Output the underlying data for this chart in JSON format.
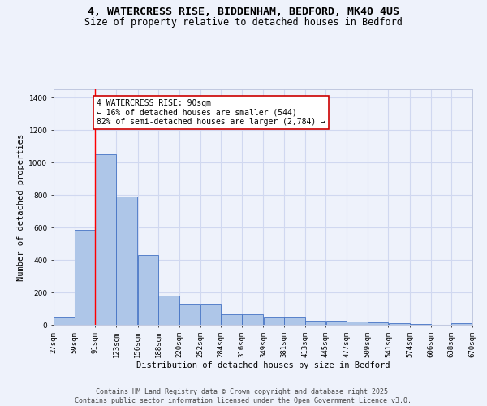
{
  "title_line1": "4, WATERCRESS RISE, BIDDENHAM, BEDFORD, MK40 4US",
  "title_line2": "Size of property relative to detached houses in Bedford",
  "xlabel": "Distribution of detached houses by size in Bedford",
  "ylabel": "Number of detached properties",
  "bar_left_edges": [
    27,
    59,
    91,
    123,
    156,
    188,
    220,
    252,
    284,
    316,
    349,
    381,
    413,
    445,
    477,
    509,
    541,
    574,
    606,
    638
  ],
  "bar_widths": [
    32,
    32,
    32,
    33,
    32,
    32,
    32,
    32,
    32,
    33,
    32,
    32,
    32,
    32,
    32,
    32,
    33,
    32,
    32,
    32
  ],
  "bar_heights": [
    45,
    585,
    1050,
    790,
    430,
    180,
    125,
    125,
    65,
    65,
    45,
    45,
    25,
    25,
    20,
    15,
    10,
    5,
    0,
    10
  ],
  "bar_color": "#aec6e8",
  "bar_edgecolor": "#4472c4",
  "background_color": "#eef2fb",
  "grid_color": "#d0d8f0",
  "red_line_x": 91,
  "annotation_text": "4 WATERCRESS RISE: 90sqm\n← 16% of detached houses are smaller (544)\n82% of semi-detached houses are larger (2,784) →",
  "annotation_box_color": "#ffffff",
  "annotation_box_edgecolor": "#cc0000",
  "ylim": [
    0,
    1450
  ],
  "yticks": [
    0,
    200,
    400,
    600,
    800,
    1000,
    1200,
    1400
  ],
  "xlim_left": 27,
  "xlim_right": 670,
  "tick_labels": [
    "27sqm",
    "59sqm",
    "91sqm",
    "123sqm",
    "156sqm",
    "188sqm",
    "220sqm",
    "252sqm",
    "284sqm",
    "316sqm",
    "349sqm",
    "381sqm",
    "413sqm",
    "445sqm",
    "477sqm",
    "509sqm",
    "541sqm",
    "574sqm",
    "606sqm",
    "638sqm",
    "670sqm"
  ],
  "tick_positions": [
    27,
    59,
    91,
    123,
    156,
    188,
    220,
    252,
    284,
    316,
    349,
    381,
    413,
    445,
    477,
    509,
    541,
    574,
    606,
    638,
    670
  ],
  "footer_line1": "Contains HM Land Registry data © Crown copyright and database right 2025.",
  "footer_line2": "Contains public sector information licensed under the Open Government Licence v3.0.",
  "title_fontsize": 9.5,
  "subtitle_fontsize": 8.5,
  "axis_label_fontsize": 7.5,
  "tick_fontsize": 6.5,
  "annotation_fontsize": 7,
  "footer_fontsize": 6
}
